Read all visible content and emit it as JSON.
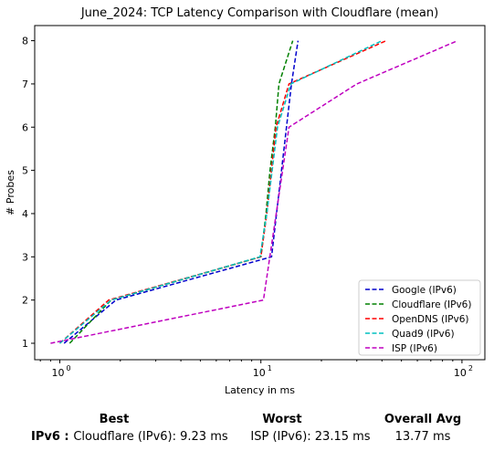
{
  "chart_data": {
    "type": "line",
    "title": "June_2024: TCP Latency Comparison with Cloudflare (mean)",
    "xlabel": "Latency in ms",
    "ylabel": "# Probes",
    "xscale": "log",
    "xlim": [
      0.75,
      130
    ],
    "ylim": [
      0.62,
      8.35
    ],
    "xticks": [
      1,
      10,
      100
    ],
    "xtick_labels": [
      "10",
      "10",
      "10"
    ],
    "xtick_exponents": [
      "0",
      "1",
      "2"
    ],
    "yticks": [
      1,
      2,
      3,
      4,
      5,
      6,
      7,
      8
    ],
    "ytick_labels": [
      "1",
      "2",
      "3",
      "4",
      "5",
      "6",
      "7",
      "8"
    ],
    "grid": false,
    "legend_position": "bottom-right",
    "series": [
      {
        "name": "Google (IPv6)",
        "color": "#0000cc",
        "x": [
          1.05,
          1.9,
          11.3,
          14.2,
          15.3
        ],
        "y": [
          1,
          2,
          3,
          7,
          8
        ]
      },
      {
        "name": "Cloudflare (IPv6)",
        "color": "#008000",
        "x": [
          1.12,
          1.8,
          10.0,
          10.6,
          11.1,
          11.8,
          12.3,
          14.4
        ],
        "y": [
          1,
          2,
          3,
          4,
          5,
          6,
          7,
          8
        ]
      },
      {
        "name": "OpenDNS (IPv6)",
        "color": "#ff0000",
        "x": [
          1.0,
          1.75,
          10.0,
          10.7,
          11.9,
          13.8,
          42.0
        ],
        "y": [
          1,
          2,
          3,
          4,
          6,
          7,
          8
        ]
      },
      {
        "name": "Quad9 (IPv6)",
        "color": "#00bfbf",
        "x": [
          1.0,
          1.8,
          9.9,
          10.7,
          12.1,
          14.1,
          40.0
        ],
        "y": [
          1,
          2,
          3,
          4,
          6,
          7,
          8
        ]
      },
      {
        "name": "ISP (IPv6)",
        "color": "#bf00bf",
        "x": [
          0.9,
          10.3,
          13.8,
          30.0,
          95.0
        ],
        "y": [
          1,
          2,
          6,
          7,
          8
        ]
      }
    ]
  },
  "summary": {
    "headers": {
      "best": "Best",
      "worst": "Worst",
      "avg": "Overall Avg"
    },
    "row_label": "IPv6 :",
    "best": "Cloudflare (IPv6): 9.23 ms",
    "worst": "ISP (IPv6): 23.15 ms",
    "avg": "13.77 ms"
  }
}
